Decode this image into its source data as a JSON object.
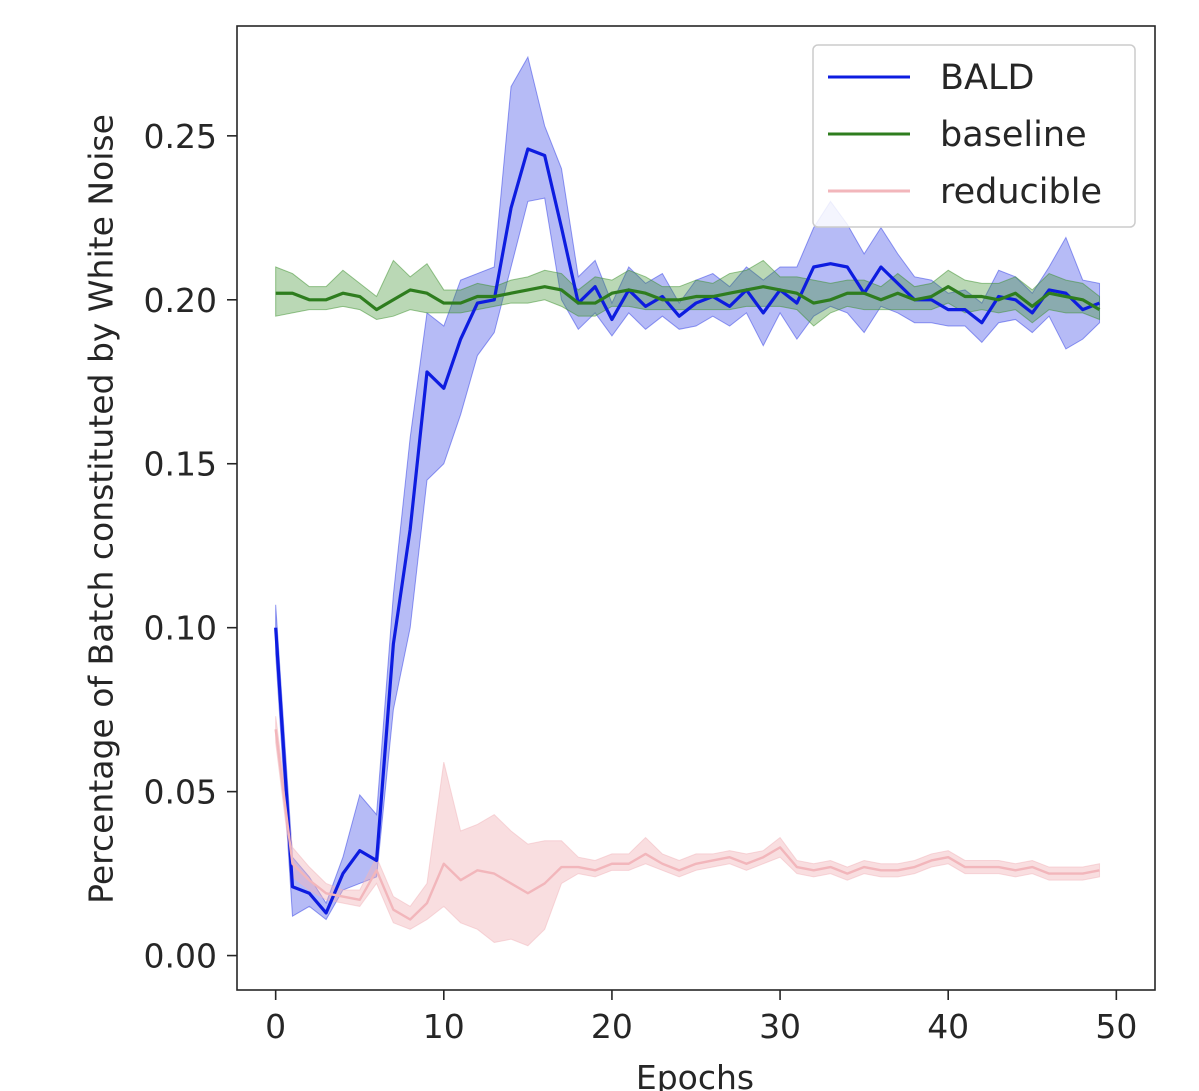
{
  "chart_data": {
    "type": "line",
    "title": "",
    "xlabel": "Epochs",
    "ylabel": "Percentage of Batch constituted by White Noise",
    "xlim": [
      -2.3,
      52.3
    ],
    "ylim": [
      -0.0105,
      0.2835
    ],
    "xticks": [
      0,
      10,
      20,
      30,
      40,
      50
    ],
    "xtick_labels": [
      "0",
      "10",
      "20",
      "30",
      "40",
      "50"
    ],
    "yticks": [
      0.0,
      0.05,
      0.1,
      0.15,
      0.2,
      0.25
    ],
    "ytick_labels": [
      "0.00",
      "0.05",
      "0.10",
      "0.15",
      "0.20",
      "0.25"
    ],
    "grid": false,
    "legend_position": "top-right",
    "x": [
      0,
      1,
      2,
      3,
      4,
      5,
      6,
      7,
      8,
      9,
      10,
      11,
      12,
      13,
      14,
      15,
      16,
      17,
      18,
      19,
      20,
      21,
      22,
      23,
      24,
      25,
      26,
      27,
      28,
      29,
      30,
      31,
      32,
      33,
      34,
      35,
      36,
      37,
      38,
      39,
      40,
      41,
      42,
      43,
      44,
      45,
      46,
      47,
      48,
      49
    ],
    "series": [
      {
        "name": "BALD",
        "color": "#0d1ce0",
        "fill_color": "#2f3de6",
        "values": [
          0.1,
          0.021,
          0.019,
          0.013,
          0.025,
          0.032,
          0.029,
          0.095,
          0.13,
          0.178,
          0.173,
          0.188,
          0.199,
          0.2,
          0.228,
          0.246,
          0.244,
          0.222,
          0.199,
          0.204,
          0.194,
          0.203,
          0.198,
          0.201,
          0.195,
          0.199,
          0.201,
          0.198,
          0.203,
          0.196,
          0.203,
          0.199,
          0.21,
          0.211,
          0.21,
          0.202,
          0.21,
          0.205,
          0.2,
          0.2,
          0.197,
          0.197,
          0.193,
          0.201,
          0.2,
          0.196,
          0.203,
          0.202,
          0.197,
          0.199
        ],
        "lower": [
          0.092,
          0.012,
          0.015,
          0.011,
          0.02,
          0.022,
          0.024,
          0.075,
          0.1,
          0.145,
          0.15,
          0.165,
          0.183,
          0.19,
          0.21,
          0.23,
          0.231,
          0.2,
          0.191,
          0.196,
          0.189,
          0.196,
          0.191,
          0.195,
          0.191,
          0.192,
          0.195,
          0.192,
          0.196,
          0.186,
          0.196,
          0.188,
          0.195,
          0.198,
          0.196,
          0.19,
          0.198,
          0.196,
          0.193,
          0.193,
          0.192,
          0.192,
          0.187,
          0.193,
          0.194,
          0.19,
          0.195,
          0.185,
          0.188,
          0.193
        ],
        "upper": [
          0.107,
          0.03,
          0.024,
          0.016,
          0.03,
          0.049,
          0.043,
          0.11,
          0.158,
          0.196,
          0.192,
          0.206,
          0.208,
          0.21,
          0.265,
          0.274,
          0.253,
          0.24,
          0.207,
          0.212,
          0.199,
          0.21,
          0.205,
          0.208,
          0.199,
          0.206,
          0.208,
          0.204,
          0.21,
          0.206,
          0.21,
          0.21,
          0.222,
          0.23,
          0.223,
          0.214,
          0.222,
          0.214,
          0.207,
          0.206,
          0.202,
          0.203,
          0.199,
          0.209,
          0.207,
          0.202,
          0.21,
          0.219,
          0.206,
          0.205
        ]
      },
      {
        "name": "baseline",
        "color": "#2e7d1e",
        "fill_color": "#3a8f2a",
        "values": [
          0.202,
          0.202,
          0.2,
          0.2,
          0.202,
          0.201,
          0.197,
          0.2,
          0.203,
          0.202,
          0.199,
          0.199,
          0.201,
          0.201,
          0.202,
          0.203,
          0.204,
          0.203,
          0.199,
          0.199,
          0.202,
          0.203,
          0.202,
          0.2,
          0.2,
          0.201,
          0.201,
          0.202,
          0.203,
          0.204,
          0.203,
          0.202,
          0.199,
          0.2,
          0.202,
          0.202,
          0.2,
          0.202,
          0.2,
          0.201,
          0.204,
          0.201,
          0.201,
          0.2,
          0.202,
          0.198,
          0.202,
          0.201,
          0.2,
          0.197
        ],
        "lower": [
          0.195,
          0.196,
          0.197,
          0.197,
          0.198,
          0.197,
          0.194,
          0.195,
          0.197,
          0.196,
          0.196,
          0.196,
          0.197,
          0.198,
          0.199,
          0.199,
          0.2,
          0.198,
          0.195,
          0.195,
          0.198,
          0.198,
          0.197,
          0.197,
          0.197,
          0.197,
          0.197,
          0.197,
          0.198,
          0.198,
          0.198,
          0.197,
          0.192,
          0.196,
          0.198,
          0.197,
          0.197,
          0.197,
          0.197,
          0.197,
          0.199,
          0.196,
          0.197,
          0.196,
          0.197,
          0.193,
          0.197,
          0.196,
          0.196,
          0.194
        ],
        "upper": [
          0.21,
          0.208,
          0.204,
          0.204,
          0.209,
          0.205,
          0.201,
          0.212,
          0.207,
          0.211,
          0.203,
          0.203,
          0.205,
          0.204,
          0.206,
          0.207,
          0.209,
          0.208,
          0.203,
          0.207,
          0.206,
          0.209,
          0.207,
          0.204,
          0.204,
          0.206,
          0.205,
          0.208,
          0.209,
          0.212,
          0.207,
          0.207,
          0.206,
          0.205,
          0.206,
          0.206,
          0.204,
          0.208,
          0.204,
          0.205,
          0.209,
          0.206,
          0.205,
          0.205,
          0.207,
          0.203,
          0.208,
          0.206,
          0.205,
          0.201
        ]
      },
      {
        "name": "reducible",
        "color": "#f2b6bb",
        "fill_color": "#f2b6bb",
        "values": [
          0.069,
          0.028,
          0.023,
          0.019,
          0.018,
          0.017,
          0.026,
          0.014,
          0.011,
          0.016,
          0.028,
          0.023,
          0.026,
          0.025,
          0.022,
          0.019,
          0.022,
          0.027,
          0.027,
          0.026,
          0.028,
          0.028,
          0.031,
          0.028,
          0.026,
          0.028,
          0.029,
          0.03,
          0.028,
          0.03,
          0.033,
          0.027,
          0.026,
          0.027,
          0.025,
          0.027,
          0.026,
          0.026,
          0.027,
          0.029,
          0.03,
          0.027,
          0.027,
          0.027,
          0.026,
          0.027,
          0.025,
          0.025,
          0.025,
          0.026
        ],
        "lower": [
          0.065,
          0.024,
          0.02,
          0.017,
          0.016,
          0.015,
          0.022,
          0.01,
          0.008,
          0.011,
          0.015,
          0.01,
          0.008,
          0.004,
          0.005,
          0.003,
          0.008,
          0.022,
          0.025,
          0.024,
          0.026,
          0.026,
          0.028,
          0.026,
          0.024,
          0.026,
          0.027,
          0.028,
          0.026,
          0.028,
          0.03,
          0.025,
          0.024,
          0.025,
          0.023,
          0.025,
          0.024,
          0.024,
          0.025,
          0.027,
          0.028,
          0.025,
          0.025,
          0.025,
          0.024,
          0.025,
          0.023,
          0.023,
          0.023,
          0.024
        ],
        "upper": [
          0.073,
          0.033,
          0.027,
          0.022,
          0.02,
          0.02,
          0.03,
          0.018,
          0.015,
          0.022,
          0.059,
          0.038,
          0.04,
          0.043,
          0.038,
          0.034,
          0.035,
          0.035,
          0.03,
          0.029,
          0.031,
          0.031,
          0.036,
          0.031,
          0.029,
          0.031,
          0.031,
          0.032,
          0.031,
          0.032,
          0.036,
          0.029,
          0.028,
          0.029,
          0.027,
          0.029,
          0.028,
          0.028,
          0.029,
          0.031,
          0.032,
          0.029,
          0.029,
          0.029,
          0.028,
          0.029,
          0.027,
          0.027,
          0.027,
          0.028
        ]
      }
    ]
  }
}
